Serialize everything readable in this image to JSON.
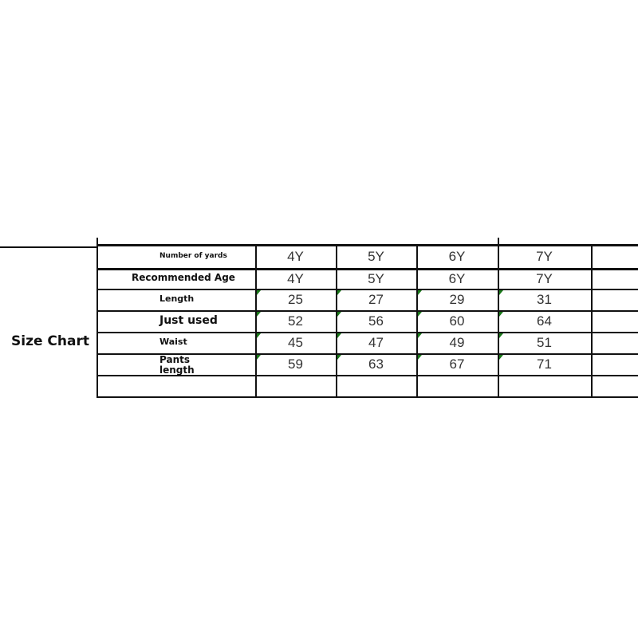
{
  "title": "Size Chart",
  "rows": [
    {
      "label": "Number of yards",
      "values": [
        "4Y",
        "5Y",
        "6Y",
        "7Y"
      ]
    },
    {
      "label": "Recommended Age",
      "values": [
        "4Y",
        "5Y",
        "6Y",
        "7Y"
      ]
    },
    {
      "label": "Length",
      "values": [
        "25",
        "27",
        "29",
        "31"
      ]
    },
    {
      "label": "Just used",
      "values": [
        "52",
        "56",
        "60",
        "64"
      ]
    },
    {
      "label": "Waist",
      "values": [
        "45",
        "47",
        "49",
        "51"
      ]
    },
    {
      "label": "Pants length",
      "values": [
        "59",
        "63",
        "67",
        "71"
      ]
    },
    {
      "label": "",
      "values": [
        "",
        "",
        "",
        ""
      ]
    }
  ],
  "colors": {
    "line": "#111111",
    "cell_marker": "#1a7a1a"
  }
}
